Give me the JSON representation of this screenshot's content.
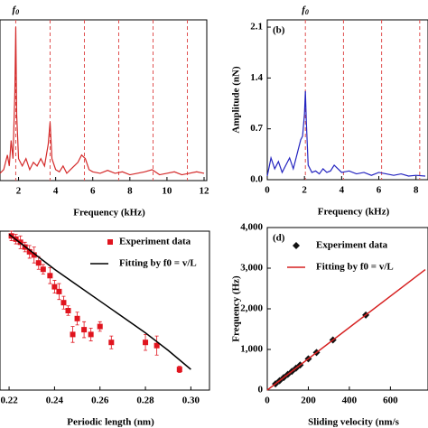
{
  "chart_data": [
    {
      "type": "line",
      "xlabel": "Frequency (kHz)",
      "annotation": {
        "text": "f",
        "subscript": "0"
      },
      "x": [
        1.0,
        1.2,
        1.4,
        1.5,
        1.6,
        1.7,
        1.8,
        1.85,
        1.9,
        2.0,
        2.2,
        2.4,
        2.6,
        2.8,
        3.0,
        3.2,
        3.4,
        3.6,
        3.7,
        3.8,
        4.0,
        4.2,
        4.4,
        4.6,
        4.8,
        5.0,
        5.2,
        5.4,
        5.6,
        5.8,
        6.0,
        6.4,
        6.8,
        7.2,
        7.6,
        8.0,
        8.4,
        8.8,
        9.2,
        9.6,
        10.0,
        10.4,
        10.8,
        11.2,
        11.6,
        12.0
      ],
      "series": [
        {
          "color": "#d42a2a",
          "values": [
            0.1,
            0.15,
            0.35,
            0.2,
            0.55,
            0.3,
            1.2,
            2.1,
            0.9,
            0.3,
            0.2,
            0.3,
            0.15,
            0.25,
            0.2,
            0.3,
            0.2,
            0.5,
            0.8,
            0.3,
            0.15,
            0.12,
            0.2,
            0.1,
            0.15,
            0.2,
            0.25,
            0.35,
            0.3,
            0.15,
            0.12,
            0.1,
            0.14,
            0.1,
            0.12,
            0.08,
            0.1,
            0.12,
            0.15,
            0.08,
            0.1,
            0.12,
            0.08,
            0.1,
            0.12,
            0.1
          ]
        }
      ],
      "xlim": [
        1,
        12
      ],
      "xticks": [
        2,
        4,
        6,
        8,
        10,
        12
      ],
      "ylim": [
        0,
        2.2
      ],
      "harmonics": [
        1.85,
        3.7,
        5.55,
        7.4,
        9.25,
        11.1
      ],
      "harmonic_color": "#e05050"
    },
    {
      "type": "line",
      "panel_label": "(b)",
      "xlabel": "Frequency (kHz)",
      "ylabel": "Amplitude (nN)",
      "annotation": {
        "text": "f",
        "subscript": "0"
      },
      "x": [
        0,
        0.2,
        0.4,
        0.6,
        0.8,
        1.0,
        1.2,
        1.4,
        1.6,
        1.8,
        1.9,
        2.0,
        2.05,
        2.1,
        2.2,
        2.4,
        2.6,
        2.8,
        3.0,
        3.2,
        3.4,
        3.6,
        3.8,
        4.0,
        4.4,
        4.8,
        5.2,
        5.6,
        6.0,
        6.4,
        6.8,
        7.2,
        7.6,
        8.0,
        8.5
      ],
      "series": [
        {
          "color": "#2424c0",
          "values": [
            0.05,
            0.3,
            0.15,
            0.25,
            0.1,
            0.2,
            0.3,
            0.15,
            0.35,
            0.55,
            0.6,
            0.9,
            1.22,
            0.8,
            0.2,
            0.1,
            0.12,
            0.08,
            0.15,
            0.1,
            0.12,
            0.2,
            0.15,
            0.1,
            0.12,
            0.08,
            0.1,
            0.06,
            0.1,
            0.08,
            0.06,
            0.08,
            0.05,
            0.06,
            0.05
          ]
        }
      ],
      "xlim": [
        0,
        8.5
      ],
      "xticks": [
        0,
        2,
        4,
        6,
        8
      ],
      "ylim": [
        0,
        2.2
      ],
      "yticks": [
        {
          "value": 0,
          "label": "0.0"
        },
        0.7,
        1.4,
        2.1
      ],
      "harmonics": [
        2.05,
        4.1,
        6.15,
        8.2
      ],
      "harmonic_color": "#e05050"
    },
    {
      "type": "scatter",
      "xlabel": "Periodic length (nm)",
      "series": [
        {
          "name": "Experiment data",
          "marker": "square",
          "color": "#e0141e",
          "x": [
            0.221,
            0.223,
            0.225,
            0.227,
            0.229,
            0.231,
            0.233,
            0.235,
            0.238,
            0.24,
            0.242,
            0.244,
            0.246,
            0.248,
            0.25,
            0.253,
            0.256,
            0.26,
            0.265,
            0.28,
            0.285,
            0.295
          ],
          "values": [
            0.97,
            0.95,
            0.93,
            0.9,
            0.87,
            0.85,
            0.8,
            0.76,
            0.72,
            0.65,
            0.62,
            0.55,
            0.5,
            0.35,
            0.45,
            0.38,
            0.35,
            0.4,
            0.3,
            0.3,
            0.28,
            0.13
          ],
          "errors": [
            0.03,
            0.03,
            0.04,
            0.03,
            0.04,
            0.05,
            0.04,
            0.03,
            0.05,
            0.04,
            0.05,
            0.04,
            0.03,
            0.05,
            0.04,
            0.05,
            0.04,
            0.03,
            0.04,
            0.05,
            0.06,
            0.02
          ]
        },
        {
          "name": "Fitting by f0 = v/L",
          "line": true,
          "color": "#000000",
          "x": [
            0.22,
            0.23,
            0.24,
            0.25,
            0.26,
            0.27,
            0.28,
            0.29,
            0.3
          ],
          "values": [
            0.98,
            0.87,
            0.76,
            0.66,
            0.56,
            0.46,
            0.36,
            0.25,
            0.13
          ]
        }
      ],
      "xlim": [
        0.216,
        0.307
      ],
      "xticks": [
        0.22,
        0.24,
        0.26,
        0.28,
        {
          "value": 0.3,
          "label": "0.30"
        }
      ],
      "ylim": [
        0,
        1
      ]
    },
    {
      "type": "scatter",
      "panel_label": "(d)",
      "xlabel": "Sliding velocity (nm/s",
      "ylabel": "Frequency (Hz)",
      "series": [
        {
          "name": "Experiment data",
          "marker": "diamond",
          "color": "#111111",
          "x": [
            40,
            60,
            80,
            100,
            120,
            140,
            160,
            200,
            240,
            320,
            480
          ],
          "values": [
            154,
            231,
            308,
            385,
            462,
            539,
            616,
            770,
            924,
            1232,
            1848
          ]
        },
        {
          "name": "Fitting by f0 = v/L",
          "line": true,
          "color": "#d62020",
          "x": [
            0,
            770
          ],
          "values": [
            0,
            2965
          ]
        }
      ],
      "xlim": [
        0,
        770
      ],
      "xticks": [
        0,
        200,
        400,
        600
      ],
      "ylim": [
        0,
        4000
      ],
      "yticks": [
        0,
        {
          "value": 1000,
          "label": "1,000"
        },
        {
          "value": 2000,
          "label": "2,000"
        },
        {
          "value": 3000,
          "label": "3,000"
        },
        {
          "value": 4000,
          "label": "4,000"
        }
      ]
    }
  ]
}
